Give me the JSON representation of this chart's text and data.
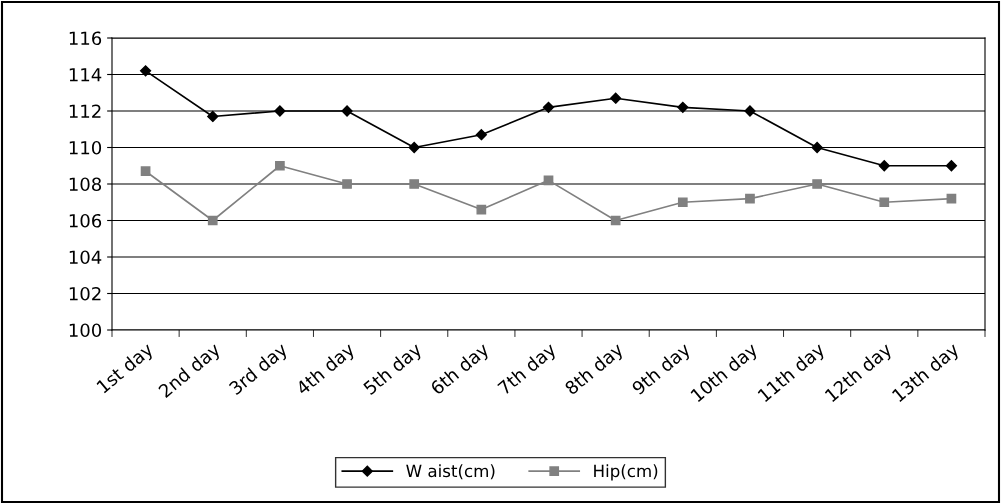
{
  "chart_data": {
    "type": "line",
    "categories": [
      "1st day",
      "2nd day",
      "3rd day",
      "4th day",
      "5th day",
      "6th day",
      "7th day",
      "8th day",
      "9th day",
      "10th day",
      "11th day",
      "12th day",
      "13th day"
    ],
    "series": [
      {
        "name": "W aist(cm)",
        "color": "#000000",
        "marker": "diamond",
        "values": [
          114.2,
          111.7,
          112,
          112,
          110,
          110.7,
          112.2,
          112.7,
          112.2,
          112,
          110,
          109,
          109
        ]
      },
      {
        "name": "Hip(cm)",
        "color": "#808080",
        "marker": "square",
        "values": [
          108.7,
          106,
          109,
          108,
          108,
          106.6,
          108.2,
          106,
          107,
          107.2,
          108,
          107,
          107.2
        ]
      }
    ],
    "ylim": [
      100,
      116
    ],
    "yticks": [
      100,
      102,
      104,
      106,
      108,
      110,
      112,
      114,
      116
    ],
    "grid": "y",
    "legend": "bottom",
    "line_style": "solid"
  }
}
